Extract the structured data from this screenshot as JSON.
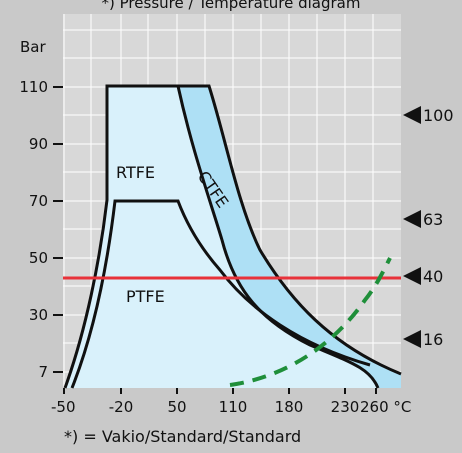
{
  "chart_data": {
    "type": "area",
    "title": "*) Pressure / Temperature diagram",
    "ylabel": "Bar",
    "xunit": "°C",
    "footnote": "*) = Vakio/Standard/Standard",
    "x_ticks": [
      "-50",
      "-20",
      "50",
      "110",
      "180",
      "230",
      "260 °C"
    ],
    "y_ticks": [
      "110",
      "90",
      "70",
      "50",
      "30",
      "7"
    ],
    "right_markers": [
      "100",
      "63",
      "40",
      "16"
    ],
    "grid": true,
    "colors": {
      "background": "#c9c9c9",
      "plot_area": "#d8d8d8",
      "grid": "#ffffff",
      "region_light": "#d9f1fb",
      "region_dark": "#aee0f5",
      "outline": "#111111",
      "red_line": "#e8323a",
      "green_dash": "#1f8f3a"
    },
    "regions": [
      {
        "name": "RTFE",
        "label": "RTFE"
      },
      {
        "name": "CTFE",
        "label": "CTFE"
      },
      {
        "name": "PTFE",
        "label": "PTFE"
      }
    ],
    "reference_line": {
      "y": 43,
      "color": "#e8323a"
    }
  }
}
